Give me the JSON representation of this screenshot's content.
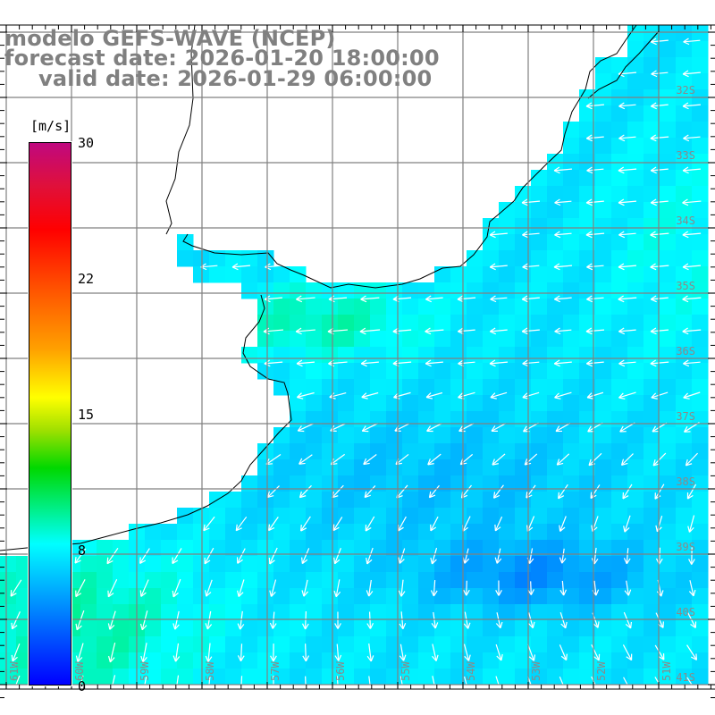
{
  "title": {
    "model": "modelo GEFS-WAVE (NCEP)",
    "forecast_date": "forecast date: 2026-01-20 18:00:00",
    "valid_date": "valid date: 2026-01-29 06:00:00"
  },
  "colorbar": {
    "unit": "[m/s]",
    "ticks": [
      "30",
      "22",
      "15",
      "8",
      "0"
    ],
    "range": [
      0,
      30
    ],
    "stops": [
      "#0000ff",
      "#00ffff",
      "#00d800",
      "#ffff00",
      "#ff0000",
      "#c0087f"
    ]
  },
  "lat_labels": [
    "32S",
    "33S",
    "34S",
    "35S",
    "36S",
    "37S",
    "38S",
    "39S",
    "40S",
    "41S"
  ],
  "lon_labels": [
    "61W",
    "60W",
    "59W",
    "58W",
    "57W",
    "56W",
    "55W",
    "54W",
    "53W",
    "52W",
    "51W"
  ],
  "colors": {
    "land": "#ffffff",
    "coast": "#000000",
    "grid": "#808080",
    "arrow": "#ffffff",
    "label": "#8a8a8a"
  }
}
